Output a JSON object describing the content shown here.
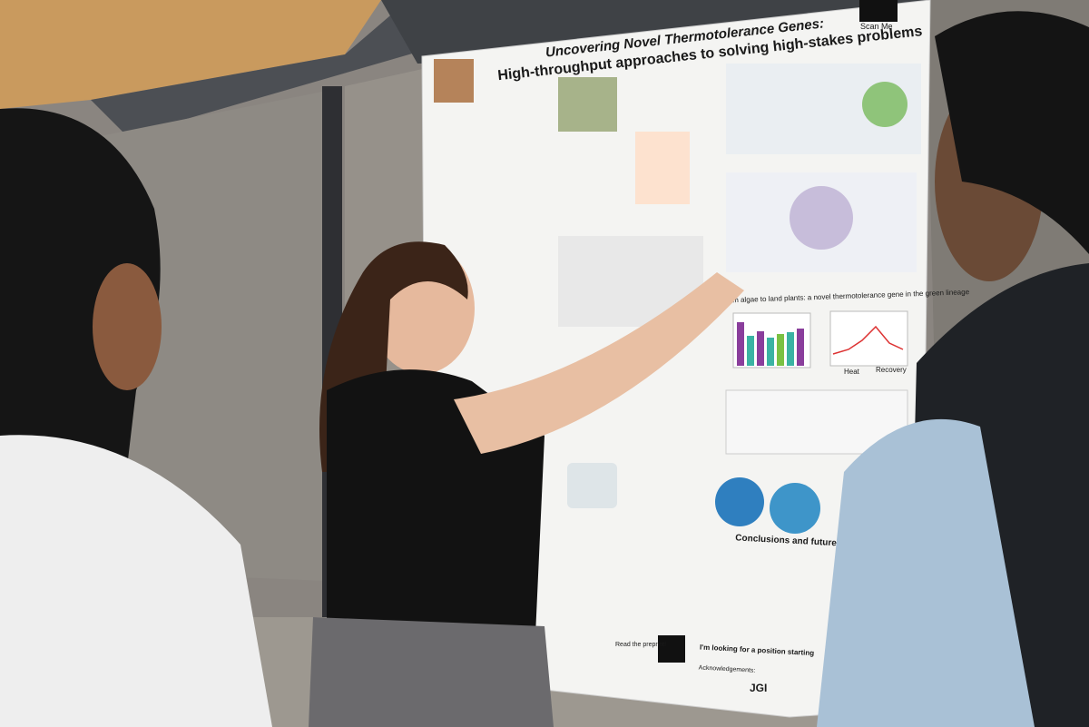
{
  "poster": {
    "title": "Uncovering Novel Thermotolerance Genes:",
    "subtitle": "High-throughput approaches to solving high-stakes problems",
    "qr_label": "Scan Me",
    "section_heading": "From algae to land plants: a novel thermotolerance gene in the green lineage",
    "chart_labels": [
      "Heat",
      "Recovery"
    ],
    "conclusions_heading": "Conclusions and future directions:",
    "job_note": "I'm looking for a position starting",
    "preprint_label": "Read the preprint!",
    "acknowledgements": "Acknowledgements:",
    "logo": "JGI"
  }
}
